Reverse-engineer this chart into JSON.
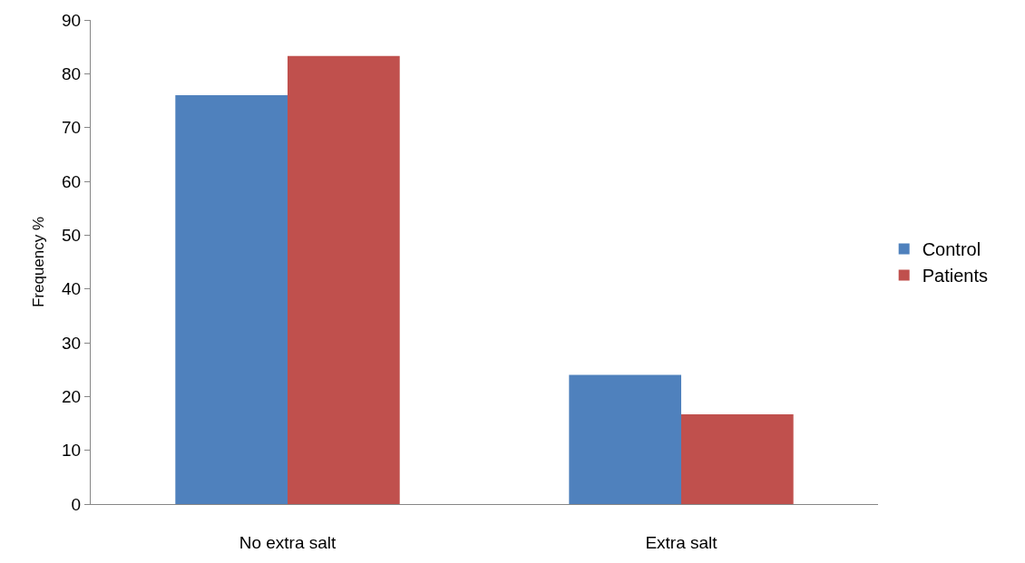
{
  "chart_data": {
    "type": "bar",
    "ylabel": "Frequency %",
    "categories": [
      "No extra salt",
      "Extra salt"
    ],
    "series": [
      {
        "name": "Control",
        "color": "#4f81bd",
        "values": [
          76,
          24
        ]
      },
      {
        "name": "Patients",
        "color": "#c0504d",
        "values": [
          83.3,
          16.7
        ]
      }
    ],
    "ylim": [
      0,
      90
    ],
    "yticks": [
      0,
      10,
      20,
      30,
      40,
      50,
      60,
      70,
      80,
      90
    ],
    "legend": "right"
  }
}
